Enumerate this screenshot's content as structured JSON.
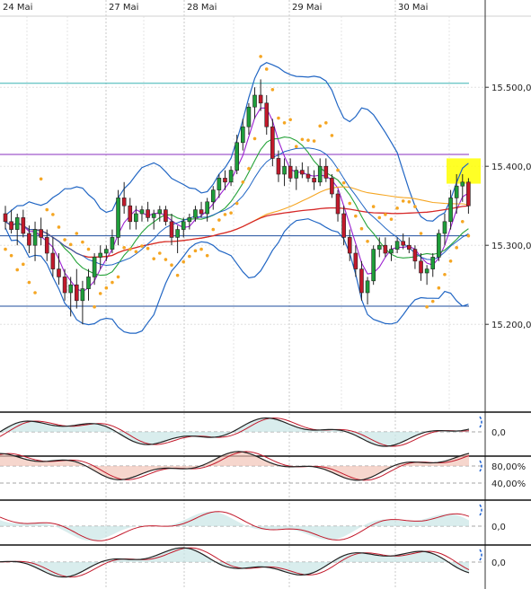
{
  "chart_data": {
    "type": "candlestick",
    "x_labels": [
      "24 Mai",
      "27 Mai",
      "28 Mai",
      "29 Mai",
      "30 Mai"
    ],
    "price_axis": {
      "ticks": [
        "15.500,0",
        "15.400,0",
        "15.300,0",
        "15.200,0"
      ],
      "tick_values": [
        15500,
        15400,
        15300,
        15200
      ],
      "range": [
        15090,
        15590
      ]
    },
    "reference_lines": [
      {
        "value": 15505,
        "color": "#3ab3b3"
      },
      {
        "value": 15415,
        "color": "#8a2fbf"
      },
      {
        "value": 15312,
        "color": "#1f4e9e"
      },
      {
        "value": 15223,
        "color": "#1f4e9e"
      }
    ],
    "highlight": {
      "value_low": 15378,
      "value_high": 15410,
      "color": "#ffff00"
    },
    "candles": [
      [
        15340,
        15350,
        15320,
        15330
      ],
      [
        15330,
        15345,
        15315,
        15320
      ],
      [
        15320,
        15340,
        15300,
        15335
      ],
      [
        15335,
        15345,
        15310,
        15315
      ],
      [
        15315,
        15325,
        15290,
        15300
      ],
      [
        15300,
        15330,
        15280,
        15320
      ],
      [
        15320,
        15335,
        15300,
        15310
      ],
      [
        15310,
        15320,
        15280,
        15290
      ],
      [
        15290,
        15310,
        15260,
        15270
      ],
      [
        15270,
        15290,
        15250,
        15260
      ],
      [
        15260,
        15270,
        15230,
        15240
      ],
      [
        15240,
        15260,
        15210,
        15250
      ],
      [
        15250,
        15270,
        15220,
        15230
      ],
      [
        15230,
        15255,
        15200,
        15245
      ],
      [
        15245,
        15270,
        15230,
        15260
      ],
      [
        15260,
        15290,
        15250,
        15285
      ],
      [
        15285,
        15300,
        15270,
        15290
      ],
      [
        15290,
        15300,
        15280,
        15295
      ],
      [
        15295,
        15320,
        15290,
        15310
      ],
      [
        15310,
        15370,
        15300,
        15360
      ],
      [
        15360,
        15380,
        15340,
        15350
      ],
      [
        15350,
        15360,
        15320,
        15330
      ],
      [
        15330,
        15350,
        15320,
        15340
      ],
      [
        15340,
        15350,
        15330,
        15345
      ],
      [
        15345,
        15355,
        15330,
        15335
      ],
      [
        15335,
        15345,
        15320,
        15340
      ],
      [
        15340,
        15350,
        15330,
        15345
      ],
      [
        15345,
        15350,
        15325,
        15330
      ],
      [
        15330,
        15340,
        15300,
        15310
      ],
      [
        15310,
        15325,
        15290,
        15320
      ],
      [
        15320,
        15335,
        15310,
        15330
      ],
      [
        15330,
        15340,
        15320,
        15335
      ],
      [
        15335,
        15350,
        15330,
        15345
      ],
      [
        15345,
        15355,
        15335,
        15340
      ],
      [
        15340,
        15360,
        15330,
        15355
      ],
      [
        15355,
        15375,
        15345,
        15370
      ],
      [
        15370,
        15390,
        15360,
        15385
      ],
      [
        15385,
        15395,
        15370,
        15380
      ],
      [
        15380,
        15400,
        15375,
        15395
      ],
      [
        15395,
        15440,
        15390,
        15430
      ],
      [
        15430,
        15460,
        15420,
        15450
      ],
      [
        15450,
        15480,
        15440,
        15475
      ],
      [
        15475,
        15500,
        15460,
        15490
      ],
      [
        15490,
        15510,
        15470,
        15480
      ],
      [
        15480,
        15490,
        15440,
        15450
      ],
      [
        15450,
        15460,
        15400,
        15410
      ],
      [
        15410,
        15420,
        15380,
        15390
      ],
      [
        15390,
        15410,
        15375,
        15400
      ],
      [
        15400,
        15410,
        15380,
        15385
      ],
      [
        15385,
        15400,
        15370,
        15395
      ],
      [
        15395,
        15405,
        15385,
        15390
      ],
      [
        15390,
        15400,
        15380,
        15385
      ],
      [
        15385,
        15395,
        15370,
        15380
      ],
      [
        15380,
        15410,
        15375,
        15400
      ],
      [
        15400,
        15410,
        15380,
        15385
      ],
      [
        15385,
        15390,
        15360,
        15365
      ],
      [
        15365,
        15370,
        15330,
        15340
      ],
      [
        15340,
        15350,
        15300,
        15310
      ],
      [
        15310,
        15320,
        15280,
        15290
      ],
      [
        15290,
        15300,
        15260,
        15270
      ],
      [
        15270,
        15280,
        15230,
        15240
      ],
      [
        15240,
        15260,
        15225,
        15255
      ],
      [
        15255,
        15300,
        15250,
        15295
      ],
      [
        15295,
        15310,
        15285,
        15300
      ],
      [
        15300,
        15310,
        15285,
        15290
      ],
      [
        15290,
        15300,
        15280,
        15295
      ],
      [
        15295,
        15310,
        15290,
        15305
      ],
      [
        15305,
        15315,
        15295,
        15300
      ],
      [
        15300,
        15310,
        15290,
        15295
      ],
      [
        15295,
        15300,
        15270,
        15280
      ],
      [
        15280,
        15290,
        15255,
        15265
      ],
      [
        15265,
        15275,
        15250,
        15270
      ],
      [
        15270,
        15290,
        15260,
        15285
      ],
      [
        15285,
        15320,
        15280,
        15315
      ],
      [
        15315,
        15340,
        15300,
        15330
      ],
      [
        15330,
        15370,
        15320,
        15360
      ],
      [
        15360,
        15390,
        15340,
        15375
      ],
      [
        15375,
        15390,
        15355,
        15380
      ],
      [
        15380,
        15385,
        15340,
        15350
      ]
    ],
    "indicator_panels": [
      {
        "ticks": [
          "0,0"
        ],
        "tick_values": [
          0
        ]
      },
      {
        "ticks": [
          "80,00%",
          "40,00%"
        ],
        "tick_values": [
          80,
          40
        ]
      },
      {
        "ticks": [
          "0,0"
        ],
        "tick_values": [
          0
        ]
      },
      {
        "ticks": [
          "0,0"
        ],
        "tick_values": [
          0
        ]
      }
    ],
    "colors": {
      "bull": "#1e9e3a",
      "bear": "#c2192b",
      "bollinger": "#2166c4",
      "ma_purple": "#9b1fd0",
      "ma_green": "#26a33a",
      "ma_orange": "#f5a623",
      "ma_red": "#d62828",
      "sar": "#f5a623"
    }
  }
}
